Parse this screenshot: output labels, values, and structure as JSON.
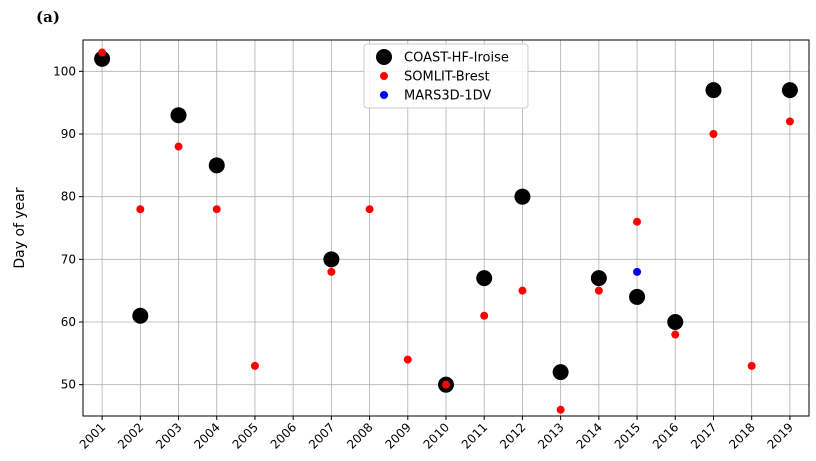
{
  "chart_data": {
    "type": "scatter",
    "annotation": "(a)",
    "y_label": "Day of year",
    "categories": [
      "2001",
      "2002",
      "2003",
      "2004",
      "2005",
      "2006",
      "2007",
      "2008",
      "2009",
      "2010",
      "2011",
      "2012",
      "2013",
      "2014",
      "2015",
      "2016",
      "2017",
      "2018",
      "2019"
    ],
    "series": [
      {
        "name": "COAST-HF-Iroise",
        "color": "#000000",
        "values": [
          102,
          61,
          93,
          85,
          null,
          null,
          70,
          null,
          null,
          50,
          67,
          80,
          52,
          67,
          64,
          60,
          97,
          null,
          97
        ]
      },
      {
        "name": "SOMLIT-Brest",
        "color": "#ff0000",
        "values": [
          103,
          78,
          88,
          78,
          53,
          null,
          68,
          78,
          54,
          50,
          61,
          65,
          46,
          65,
          76,
          58,
          90,
          53,
          92
        ]
      },
      {
        "name": "MARS3D-1DV",
        "color": "#0000ff",
        "values": [
          null,
          null,
          null,
          null,
          null,
          null,
          null,
          null,
          null,
          null,
          null,
          null,
          null,
          null,
          68,
          null,
          null,
          null,
          null
        ]
      }
    ],
    "ylim": [
      45,
      105
    ],
    "yticks": [
      50,
      60,
      70,
      80,
      90,
      100
    ],
    "grid": true,
    "legend": "upper center"
  }
}
